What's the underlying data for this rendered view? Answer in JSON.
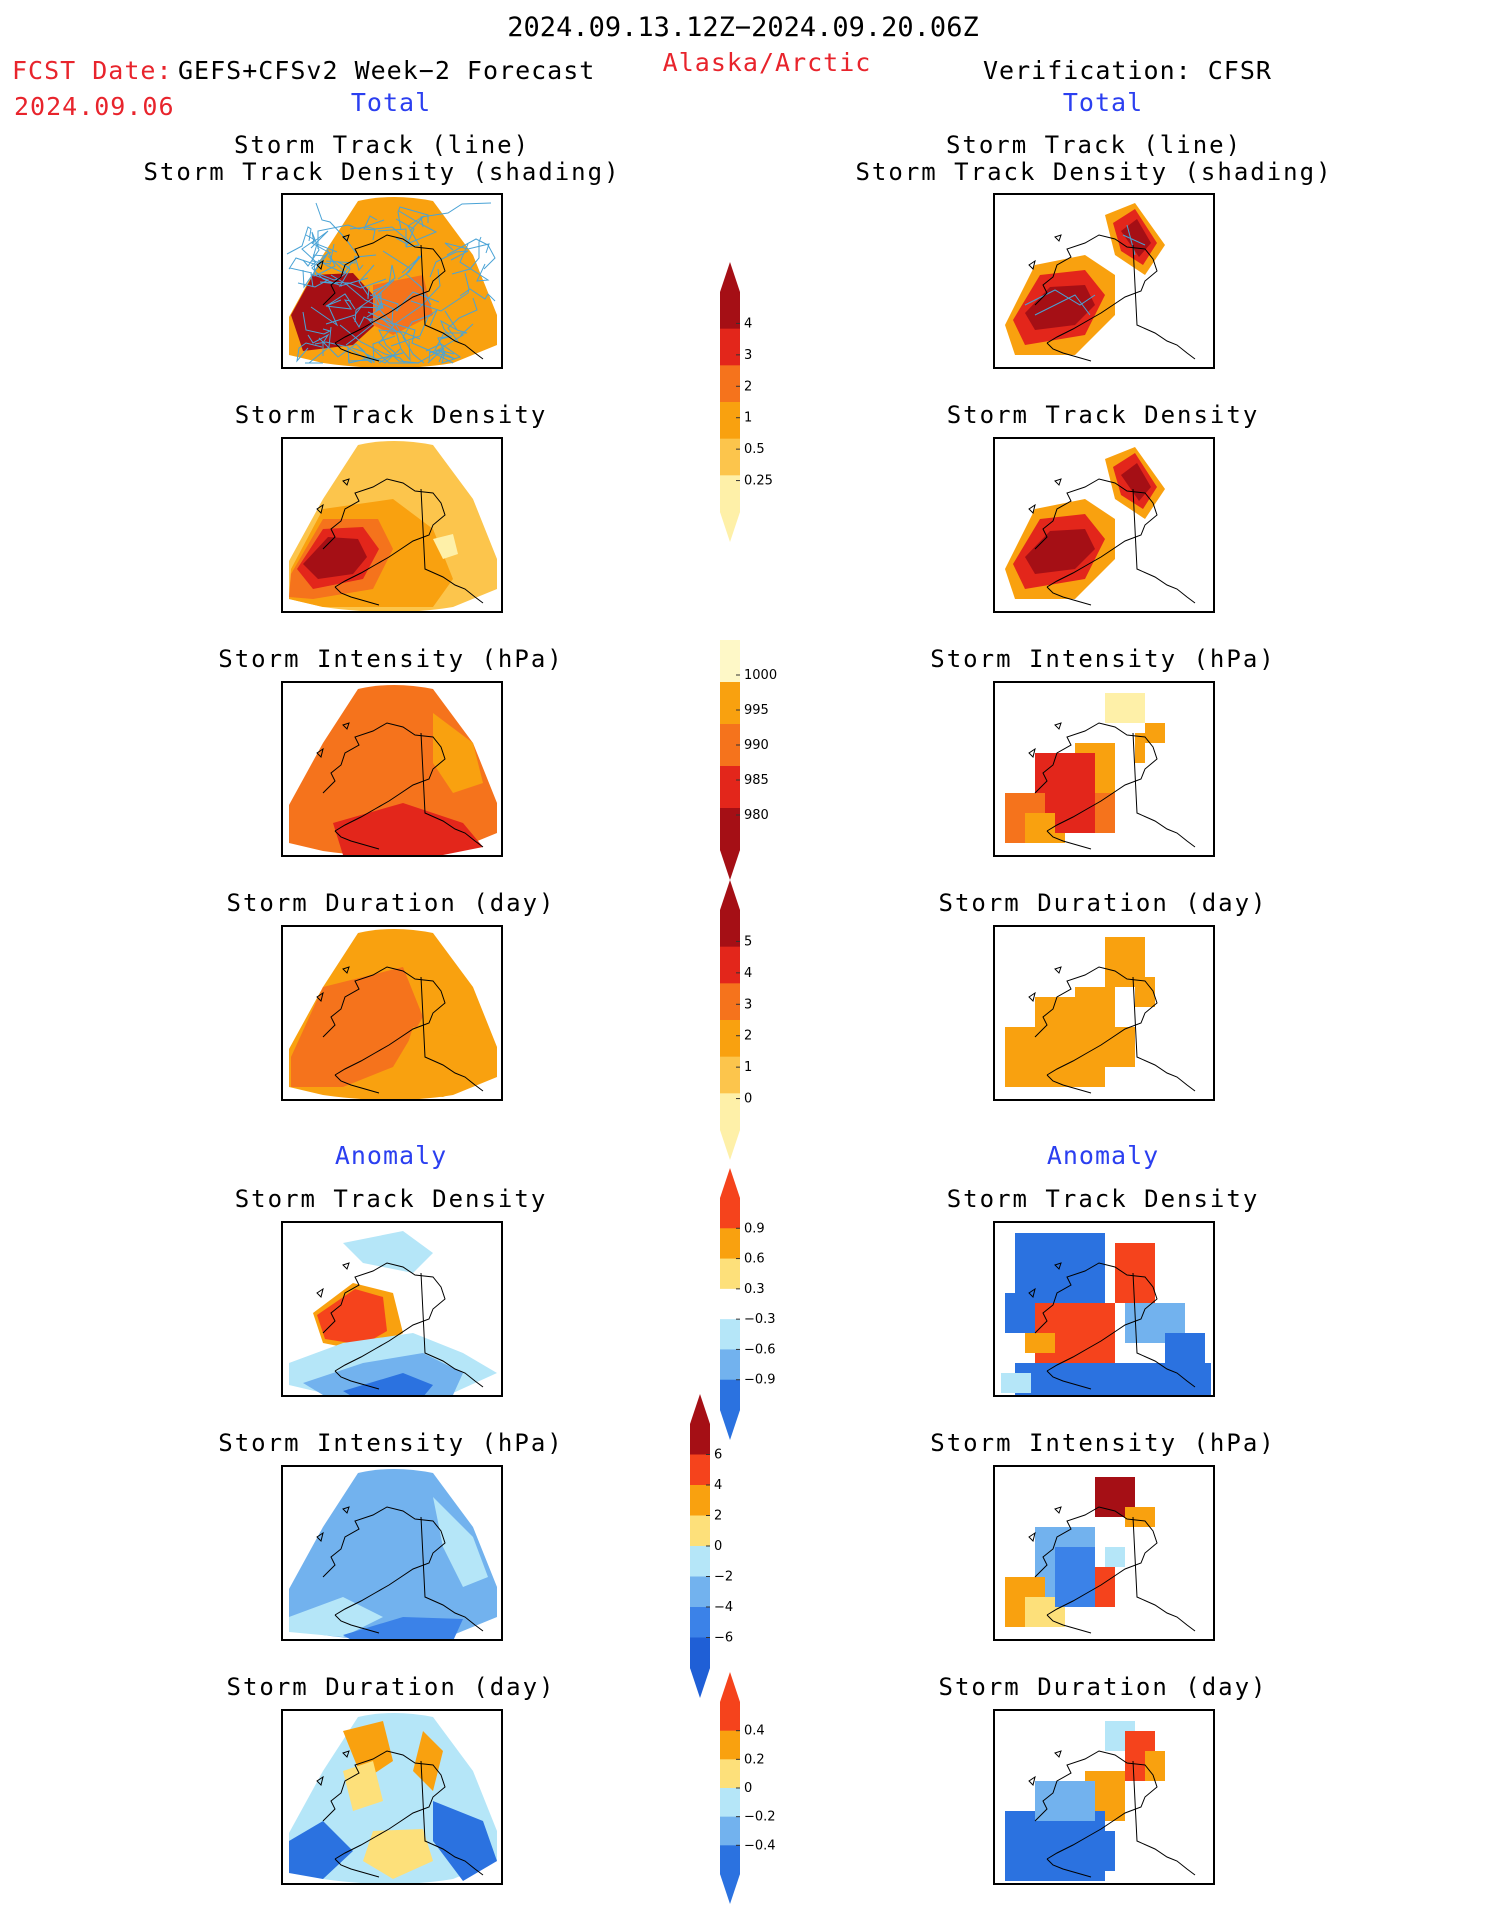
{
  "header": {
    "date_range": "2024.09.13.12Z−2024.09.20.06Z",
    "fcst_date_label": "FCST Date:",
    "model": "GEFS+CFSv2 Week−2 Forecast",
    "fcst_date": "2024.09.06",
    "region": "Alaska/Arctic",
    "verification": "Verification: CFSR"
  },
  "columns": {
    "left_total": "Total",
    "right_total": "Total",
    "left_anomaly": "Anomaly",
    "right_anomaly": "Anomaly"
  },
  "panel_titles": {
    "track_line": "Storm Track (line)",
    "track_density_shading": "Storm Track Density (shading)",
    "track_density": "Storm Track Density",
    "intensity": "Storm Intensity (hPa)",
    "duration": "Storm Duration (day)"
  },
  "colorbars": {
    "density": {
      "labels": [
        "4",
        "3",
        "2",
        "1",
        "0.5",
        "0.25"
      ],
      "colors": [
        "#a50f15",
        "#e3261b",
        "#f5731c",
        "#f9a10f",
        "#fcc54c",
        "#fef0a8"
      ]
    },
    "intensity": {
      "labels": [
        "1000",
        "995",
        "990",
        "985",
        "980"
      ],
      "colors": [
        "#fef8c7",
        "#f9a10f",
        "#f5731c",
        "#e3261b",
        "#a50f15"
      ]
    },
    "duration": {
      "labels": [
        "5",
        "4",
        "3",
        "2",
        "1",
        "0"
      ],
      "colors": [
        "#a50f15",
        "#e3261b",
        "#f5731c",
        "#f9a10f",
        "#fcc54c",
        "#fef0a8"
      ]
    },
    "density_anom": {
      "labels": [
        "0.9",
        "0.6",
        "0.3",
        "−0.3",
        "−0.6",
        "−0.9"
      ],
      "colors": [
        "#f5431c",
        "#f9a10f",
        "#fde07a",
        "#ffffff",
        "#b5e6f8",
        "#72b2ee",
        "#2b72e0"
      ]
    },
    "intensity_anom": {
      "labels": [
        "6",
        "4",
        "2",
        "0",
        "−2",
        "−4",
        "−6"
      ],
      "colors": [
        "#a50f15",
        "#f5431c",
        "#f9a10f",
        "#fde07a",
        "#b5e6f8",
        "#72b2ee",
        "#3b82e8",
        "#1f5fd6"
      ]
    },
    "duration_anom": {
      "labels": [
        "0.4",
        "0.2",
        "0",
        "−0.2",
        "−0.4"
      ],
      "colors": [
        "#f5431c",
        "#f9a10f",
        "#fde07a",
        "#b5e6f8",
        "#72b2ee",
        "#2b72e0"
      ]
    }
  },
  "colors": {
    "dark_red": "#a50f15",
    "red": "#e3261b",
    "orange_red": "#f5731c",
    "orange": "#f9a10f",
    "light_orange": "#fcc54c",
    "pale_yellow": "#fef0a8",
    "light_blue": "#b5e6f8",
    "mid_blue": "#72b2ee",
    "deep_blue": "#2b72e0",
    "track_line": "#4aa3d6"
  }
}
